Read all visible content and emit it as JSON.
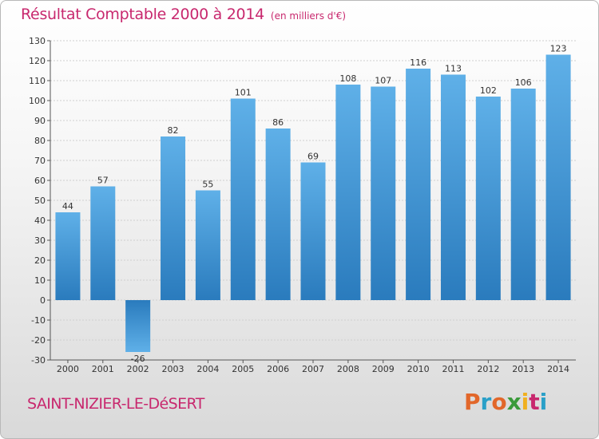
{
  "header": {
    "title": "Résultat Comptable 2000 à 2014",
    "unit": "(en milliers d'€)"
  },
  "footer": {
    "city": "SAINT-NIZIER-LE-DéSERT",
    "logo_text": "Proxiti",
    "logo_colors": [
      "#e2672a",
      "#2aa0c8",
      "#e2672a",
      "#3a9a3a",
      "#f0b020",
      "#c8286e",
      "#2aa0c8"
    ]
  },
  "colors": {
    "title": "#c8286e",
    "bar_light": "#5fb0e8",
    "bar_dark": "#2a7bbd",
    "grid": "#cfcfcf",
    "axis_text": "#333333"
  },
  "chart_data": {
    "type": "bar",
    "title": "Résultat Comptable 2000 à 2014",
    "xlabel": "",
    "ylabel": "(en milliers d'€)",
    "categories": [
      "2000",
      "2001",
      "2002",
      "2003",
      "2004",
      "2005",
      "2006",
      "2007",
      "2008",
      "2009",
      "2010",
      "2011",
      "2012",
      "2013",
      "2014"
    ],
    "values": [
      44,
      57,
      -26,
      82,
      55,
      101,
      86,
      69,
      108,
      107,
      116,
      113,
      102,
      106,
      123
    ],
    "ylim": [
      -30,
      130
    ],
    "yticks": [
      -30,
      -20,
      -10,
      0,
      10,
      20,
      30,
      40,
      50,
      60,
      70,
      80,
      90,
      100,
      110,
      120,
      130
    ],
    "grid": true,
    "legend": "none"
  }
}
